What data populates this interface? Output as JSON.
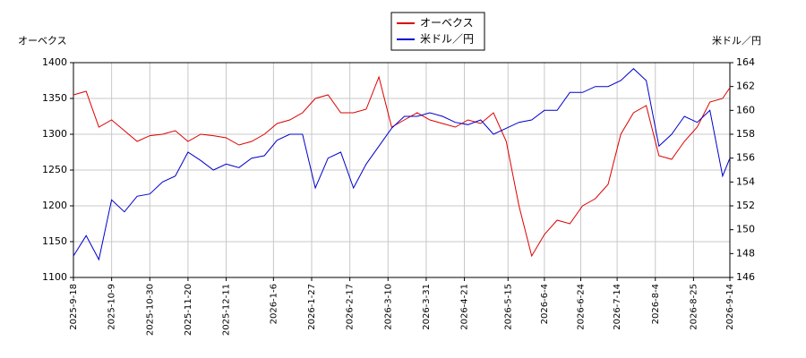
{
  "chart_data": {
    "type": "line",
    "y_label": "オーベクス",
    "y2_label": "米ドル／円",
    "x": [
      "2025-9-18",
      "2025-9-25",
      "2025-10-2",
      "2025-10-9",
      "2025-10-16",
      "2025-10-23",
      "2025-10-30",
      "2025-11-6",
      "2025-11-13",
      "2025-11-20",
      "2025-11-27",
      "2025-12-4",
      "2025-12-11",
      "2025-12-18",
      "2025-12-25",
      "2026-1-1",
      "2026-1-8",
      "2026-1-15",
      "2026-1-22",
      "2026-1-29",
      "2026-2-5",
      "2026-2-12",
      "2026-2-19",
      "2026-2-26",
      "2026-3-5",
      "2026-3-12",
      "2026-3-19",
      "2026-3-26",
      "2026-4-2",
      "2026-4-9",
      "2026-4-16",
      "2026-4-23",
      "2026-4-30",
      "2026-5-7",
      "2026-5-14",
      "2026-5-21",
      "2026-5-28",
      "2026-6-4",
      "2026-6-11",
      "2026-6-18",
      "2026-6-25",
      "2026-7-2",
      "2026-7-9",
      "2026-7-16",
      "2026-7-23",
      "2026-7-30",
      "2026-8-6",
      "2026-8-13",
      "2026-8-20",
      "2026-8-27",
      "2026-9-3",
      "2026-9-10",
      "2026-9-14"
    ],
    "series": [
      {
        "name": "オーベクス",
        "color": "#dd0000",
        "values": [
          1355,
          1360,
          1310,
          1320,
          1305,
          1290,
          1298,
          1300,
          1305,
          1290,
          1300,
          1298,
          1295,
          1285,
          1290,
          1300,
          1315,
          1320,
          1330,
          1350,
          1355,
          1330,
          1330,
          1335,
          1380,
          1310,
          1320,
          1330,
          1320,
          1315,
          1310,
          1320,
          1315,
          1330,
          1290,
          1200,
          1130,
          1160,
          1180,
          1175,
          1200,
          1210,
          1230,
          1300,
          1330,
          1340,
          1270,
          1265,
          1290,
          1310,
          1345,
          1350,
          1365
        ]
      },
      {
        "name": "米ドル／円",
        "color": "#0000cc",
        "axis": "y2",
        "values": [
          147.8,
          149.5,
          147.5,
          152.5,
          151.5,
          152.8,
          153,
          154,
          154.5,
          156.5,
          155.8,
          155,
          155.5,
          155.2,
          156,
          156.2,
          157.5,
          158,
          158,
          153.5,
          156,
          156.5,
          153.5,
          155.5,
          157,
          158.5,
          159.5,
          159.5,
          159.8,
          159.5,
          159,
          158.8,
          159.2,
          158,
          158.5,
          159,
          159.2,
          160,
          160,
          161.5,
          161.5,
          162,
          162,
          162.5,
          163.5,
          162.5,
          157,
          158,
          159.5,
          159,
          160,
          154.5,
          156
        ]
      }
    ],
    "xlim": [
      "2025-9-18",
      "2026-9-14"
    ],
    "xticks": [
      "2025-9-18",
      "2025-10-9",
      "2025-10-30",
      "2025-11-20",
      "2025-12-11",
      "2026-1-6",
      "2026-1-27",
      "2026-2-17",
      "2026-3-10",
      "2026-3-31",
      "2026-4-21",
      "2026-5-15",
      "2026-6-4",
      "2026-6-24",
      "2026-7-14",
      "2026-8-4",
      "2026-8-25",
      "2026-9-14"
    ],
    "ylim": [
      1100,
      1400
    ],
    "yticks": [
      1100,
      1150,
      1200,
      1250,
      1300,
      1350,
      1400
    ],
    "y2lim": [
      146,
      164
    ],
    "y2ticks": [
      146,
      148,
      150,
      152,
      154,
      156,
      158,
      160,
      162,
      164
    ],
    "grid": true,
    "legend": "top"
  }
}
